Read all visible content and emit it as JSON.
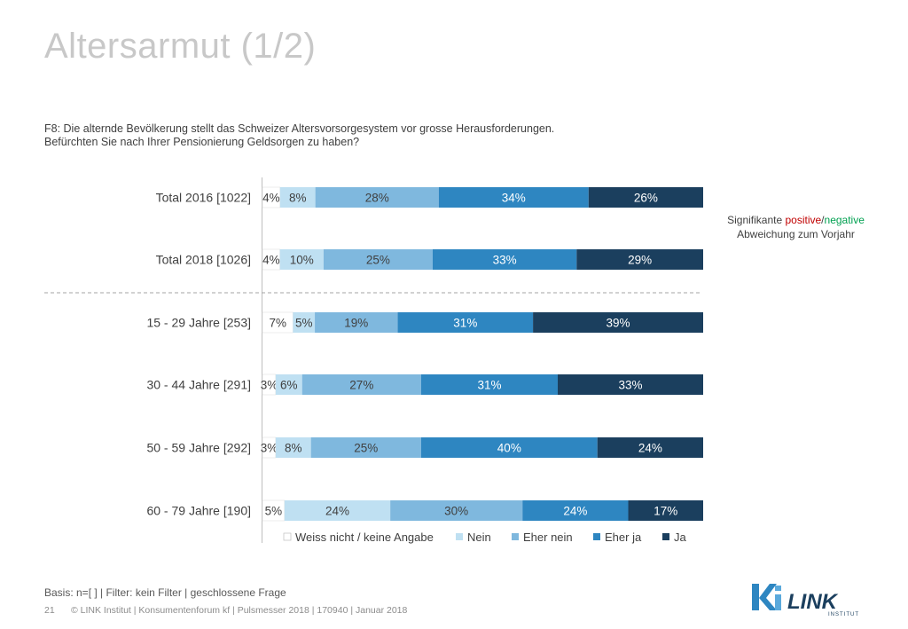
{
  "title": "Altersarmut (1/2)",
  "question": {
    "line1": "F8: Die alternde Bevölkerung stellt das Schweizer Altersvorsorgesystem vor grosse Herausforderungen.",
    "line2": "Befürchten Sie nach Ihrer Pensionierung Geldsorgen zu haben?"
  },
  "significance_note": {
    "prefix": "Signifikante ",
    "positive": "positive",
    "slash": "/",
    "negative": "negative",
    "line2": "Abweichung zum Vorjahr"
  },
  "colors": {
    "weiss_nicht": "#ffffff",
    "nein": "#bfe0f2",
    "eher_nein": "#7fb8de",
    "eher_ja": "#2e86c1",
    "ja": "#1b3f5e",
    "positive": "#c00000",
    "negative": "#00a050"
  },
  "chart_data": {
    "type": "bar",
    "orientation": "horizontal-stacked-100",
    "categories": [
      "Total 2016 [1022]",
      "Total 2018 [1026]",
      "15 - 29 Jahre [253]",
      "30 - 44 Jahre [291]",
      "50 - 59 Jahre [292]",
      "60 - 79 Jahre [190]"
    ],
    "series": [
      {
        "name": "Weiss nicht / keine Angabe",
        "values": [
          4,
          4,
          7,
          3,
          3,
          5
        ]
      },
      {
        "name": "Nein",
        "values": [
          8,
          10,
          5,
          6,
          8,
          24
        ]
      },
      {
        "name": "Eher nein",
        "values": [
          28,
          25,
          19,
          27,
          25,
          30
        ]
      },
      {
        "name": "Eher ja",
        "values": [
          34,
          33,
          31,
          31,
          40,
          24
        ]
      },
      {
        "name": "Ja",
        "values": [
          26,
          29,
          39,
          33,
          24,
          17
        ]
      }
    ],
    "legend_position": "bottom",
    "unit": "%"
  },
  "footer": {
    "basis": "Basis: n=[ ] | Filter: kein Filter | geschlossene Frage",
    "page": "21",
    "copyright": "© LINK Institut | Konsumentenforum kf | Pulsmesser 2018 | 170940 | Januar 2018"
  },
  "logo": {
    "mark": "ki",
    "name": "LINK",
    "sub": "INSTITUT"
  }
}
